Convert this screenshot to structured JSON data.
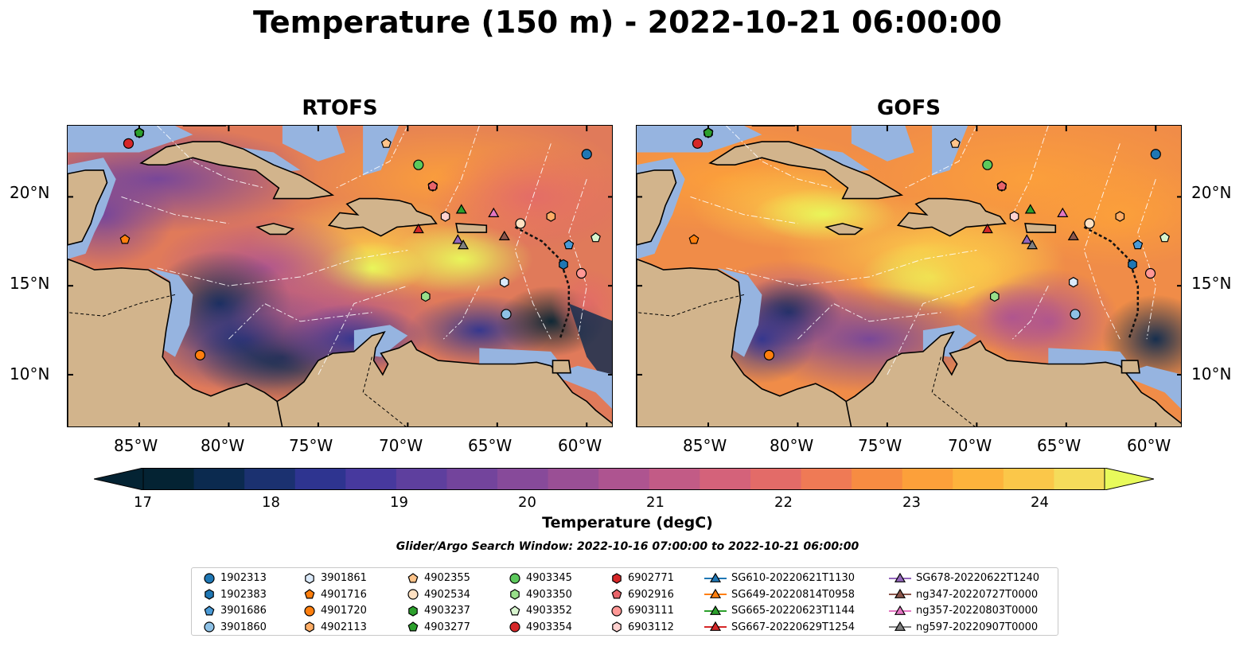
{
  "suptitle": "Temperature (150 m) - 2022-10-21 06:00:00",
  "panels": [
    {
      "title": "RTOFS",
      "model": "rtofs"
    },
    {
      "title": "GOFS",
      "model": "gofs"
    }
  ],
  "axes": {
    "lon_ticks": [
      "85°W",
      "80°W",
      "75°W",
      "70°W",
      "65°W",
      "60°W"
    ],
    "lat_ticks": [
      "20°N",
      "15°N",
      "10°N"
    ],
    "lon_range": [
      -89,
      -58.5
    ],
    "lat_range": [
      7,
      24
    ]
  },
  "colorbar": {
    "label": "Temperature (degC)",
    "ticks": [
      "17",
      "18",
      "19",
      "20",
      "21",
      "22",
      "23",
      "24"
    ],
    "range": [
      17,
      24.5
    ],
    "colormap": "thermal",
    "colors": [
      "#042333",
      "#0b2a4f",
      "#1b3170",
      "#2e3490",
      "#47399e",
      "#5e3f9e",
      "#73449c",
      "#874a9a",
      "#9a4f95",
      "#ae5490",
      "#c25b86",
      "#d4627a",
      "#e36b68",
      "#ef7a55",
      "#f78c42",
      "#fca03a",
      "#fdb33c",
      "#fbc749",
      "#f5dc5b",
      "#e8fa5b"
    ]
  },
  "search_window": "Glider/Argo Search Window: 2022-10-16 07:00:00 to 2022-10-21 06:00:00",
  "land_color": "#d2b48c",
  "shelf_color": "#96b4e0",
  "legend": [
    {
      "label": "1902313",
      "marker": "circle",
      "color": "#1f77b4"
    },
    {
      "label": "1902383",
      "marker": "hexagon",
      "color": "#1f77b4"
    },
    {
      "label": "3901686",
      "marker": "pentagon",
      "color": "#4a9ad6"
    },
    {
      "label": "3901860",
      "marker": "circle",
      "color": "#8ec1e6"
    },
    {
      "label": "3901861",
      "marker": "hexagon",
      "color": "#dbeafa"
    },
    {
      "label": "4901716",
      "marker": "pentagon",
      "color": "#ff7f0e"
    },
    {
      "label": "4901720",
      "marker": "circle",
      "color": "#ff7f0e"
    },
    {
      "label": "4902113",
      "marker": "hexagon",
      "color": "#ffad66"
    },
    {
      "label": "4902355",
      "marker": "pentagon",
      "color": "#ffc48a"
    },
    {
      "label": "4902534",
      "marker": "circle",
      "color": "#ffe1c2"
    },
    {
      "label": "4903237",
      "marker": "hexagon",
      "color": "#2ca02c"
    },
    {
      "label": "4903277",
      "marker": "pentagon",
      "color": "#2ca02c"
    },
    {
      "label": "4903345",
      "marker": "circle",
      "color": "#5cc95c"
    },
    {
      "label": "4903350",
      "marker": "hexagon",
      "color": "#98df8a"
    },
    {
      "label": "4903352",
      "marker": "pentagon",
      "color": "#d8f5cf"
    },
    {
      "label": "4903354",
      "marker": "circle",
      "color": "#d62728"
    },
    {
      "label": "6902771",
      "marker": "hexagon",
      "color": "#d62728"
    },
    {
      "label": "6902916",
      "marker": "pentagon",
      "color": "#e8646a"
    },
    {
      "label": "6903111",
      "marker": "circle",
      "color": "#ff9896"
    },
    {
      "label": "6903112",
      "marker": "hexagon",
      "color": "#ffd1cf"
    },
    {
      "label": "SG610-20220621T1130",
      "marker": "triangle",
      "color": "#1f77b4"
    },
    {
      "label": "SG649-20220814T0958",
      "marker": "triangle",
      "color": "#ff7f0e"
    },
    {
      "label": "SG665-20220623T1144",
      "marker": "triangle",
      "color": "#2ca02c"
    },
    {
      "label": "SG667-20220629T1254",
      "marker": "triangle",
      "color": "#d62728"
    },
    {
      "label": "SG678-20220622T1240",
      "marker": "triangle",
      "color": "#9467bd"
    },
    {
      "label": "ng347-20220727T0000",
      "marker": "triangle",
      "color": "#8c564b"
    },
    {
      "label": "ng357-20220803T0000",
      "marker": "triangle",
      "color": "#e377c2"
    },
    {
      "label": "ng597-20220907T0000",
      "marker": "triangle",
      "color": "#7f7f7f"
    }
  ],
  "observations": [
    {
      "label": "1902313",
      "lon": -60,
      "lat": 22.4
    },
    {
      "label": "1902383",
      "lon": -61.3,
      "lat": 16.2
    },
    {
      "label": "3901686",
      "lon": -61,
      "lat": 17.3
    },
    {
      "label": "3901860",
      "lon": -64.5,
      "lat": 13.4
    },
    {
      "label": "3901861",
      "lon": -64.6,
      "lat": 15.2
    },
    {
      "label": "4901716",
      "lon": -85.8,
      "lat": 17.6
    },
    {
      "label": "4901720",
      "lon": -81.6,
      "lat": 11.1
    },
    {
      "label": "4902113",
      "lon": -62,
      "lat": 18.9
    },
    {
      "label": "4902355",
      "lon": -71.2,
      "lat": 23
    },
    {
      "label": "4902534",
      "lon": -63.7,
      "lat": 18.5
    },
    {
      "label": "4903237",
      "lon": -85,
      "lat": 23.6
    },
    {
      "label": "4903277",
      "lon": -85,
      "lat": 23.6
    },
    {
      "label": "4903345",
      "lon": -69.4,
      "lat": 21.8
    },
    {
      "label": "4903350",
      "lon": -69,
      "lat": 14.4
    },
    {
      "label": "4903352",
      "lon": -59.5,
      "lat": 17.7
    },
    {
      "label": "4903354",
      "lon": -85.6,
      "lat": 23
    },
    {
      "label": "6902771",
      "lon": -68.6,
      "lat": 20.6
    },
    {
      "label": "6902916",
      "lon": -68.6,
      "lat": 20.6
    },
    {
      "label": "6903111",
      "lon": -60.3,
      "lat": 15.7
    },
    {
      "label": "6903112",
      "lon": -67.9,
      "lat": 18.9
    },
    {
      "label": "SG665-20220623T1144",
      "lon": -67,
      "lat": 19.3
    },
    {
      "label": "SG667-20220629T1254",
      "lon": -69.4,
      "lat": 18.2
    },
    {
      "label": "SG678-20220622T1240",
      "lon": -67.2,
      "lat": 17.6
    },
    {
      "label": "ng347-20220727T0000",
      "lon": -64.6,
      "lat": 17.8
    },
    {
      "label": "ng357-20220803T0000",
      "lon": -65.2,
      "lat": 19.1
    },
    {
      "label": "ng597-20220907T0000",
      "lon": -66.9,
      "lat": 17.3
    }
  ]
}
